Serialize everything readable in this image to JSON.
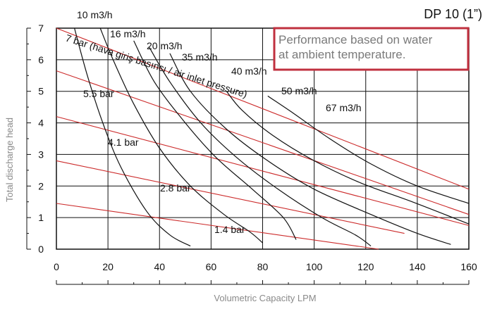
{
  "chart_data": {
    "type": "line",
    "title": "DP 10 (1”)",
    "note_lines": [
      "Performance based on water",
      "at ambient temperature."
    ],
    "xlabel": "Volumetric Capacity LPM",
    "ylabel": "Total discharge head",
    "xlim": [
      0,
      160
    ],
    "ylim": [
      0,
      7
    ],
    "x_ticks": [
      0,
      20,
      40,
      60,
      80,
      100,
      120,
      140,
      160
    ],
    "y_ticks": [
      0,
      1,
      2,
      3,
      4,
      5,
      6,
      7
    ],
    "x_grid": [
      0,
      20,
      40,
      60,
      80,
      100,
      120,
      140,
      160
    ],
    "y_grid": [
      0,
      1,
      2,
      3,
      4,
      5,
      6,
      7
    ],
    "grid": true,
    "colors": {
      "pressure_line": "#cc2b2b",
      "flow_curve": "#111111",
      "grid": "#111111",
      "note_border": "#c0303f"
    },
    "pressure_series": [
      {
        "name": "7 bar",
        "points": [
          [
            0,
            7.0
          ],
          [
            160,
            1.9
          ]
        ]
      },
      {
        "name": "5.5 bar",
        "points": [
          [
            0,
            5.65
          ],
          [
            160,
            1.1
          ]
        ]
      },
      {
        "name": "4.1 bar",
        "points": [
          [
            0,
            4.2
          ],
          [
            160,
            0.75
          ]
        ]
      },
      {
        "name": "2.8 bar",
        "points": [
          [
            0,
            2.8
          ],
          [
            135,
            0.5
          ]
        ]
      },
      {
        "name": "1.4 bar",
        "points": [
          [
            0,
            1.45
          ],
          [
            125,
            0
          ]
        ]
      }
    ],
    "flow_series": [
      {
        "name": "10 m3/h",
        "points": [
          [
            7,
            7.0
          ],
          [
            12,
            5.5
          ],
          [
            18,
            4.0
          ],
          [
            25,
            2.6
          ],
          [
            35,
            1.2
          ],
          [
            44,
            0.45
          ],
          [
            52,
            0.1
          ]
        ]
      },
      {
        "name": "16 m3/h",
        "points": [
          [
            17,
            7.0
          ],
          [
            22,
            6.0
          ],
          [
            30,
            4.6
          ],
          [
            40,
            3.2
          ],
          [
            52,
            2.0
          ],
          [
            65,
            1.1
          ],
          [
            75,
            0.55
          ],
          [
            80,
            0.2
          ]
        ]
      },
      {
        "name": "20 m3/h",
        "points": [
          [
            30,
            6.6
          ],
          [
            38,
            5.3
          ],
          [
            50,
            4.0
          ],
          [
            62,
            2.9
          ],
          [
            76,
            1.9
          ],
          [
            88,
            1.0
          ],
          [
            93,
            0.3
          ]
        ]
      },
      {
        "name": "35 m3/h",
        "points": [
          [
            36,
            6.4
          ],
          [
            44,
            5.3
          ],
          [
            56,
            4.0
          ],
          [
            70,
            2.9
          ],
          [
            86,
            1.9
          ],
          [
            103,
            1.0
          ],
          [
            116,
            0.45
          ],
          [
            122,
            0.1
          ]
        ]
      },
      {
        "name": "40 m3/h",
        "points": [
          [
            44,
            6.2
          ],
          [
            52,
            5.0
          ],
          [
            66,
            3.8
          ],
          [
            82,
            2.8
          ],
          [
            100,
            1.9
          ],
          [
            122,
            1.1
          ],
          [
            140,
            0.5
          ],
          [
            153,
            0.15
          ]
        ]
      },
      {
        "name": "50 m3/h",
        "points": [
          [
            66,
            5.0
          ],
          [
            72,
            4.4
          ],
          [
            84,
            3.6
          ],
          [
            100,
            2.8
          ],
          [
            118,
            2.1
          ],
          [
            138,
            1.5
          ],
          [
            160,
            0.8
          ]
        ]
      },
      {
        "name": "67 m3/h",
        "points": [
          [
            82,
            4.85
          ],
          [
            92,
            4.3
          ],
          [
            106,
            3.5
          ],
          [
            122,
            2.7
          ],
          [
            140,
            2.0
          ],
          [
            160,
            1.45
          ]
        ]
      }
    ],
    "curve_labels": [
      "10 m3/h",
      "16 m3/h",
      "20 m3/h",
      "35 m3/h",
      "40 m3/h",
      "50 m3/h",
      "67 m3/h",
      "7 bar (hava giriş basıncı / air inlet pressure)",
      "5.5 bar",
      "4.1 bar",
      "2.8 bar",
      "1.4 bar"
    ]
  }
}
